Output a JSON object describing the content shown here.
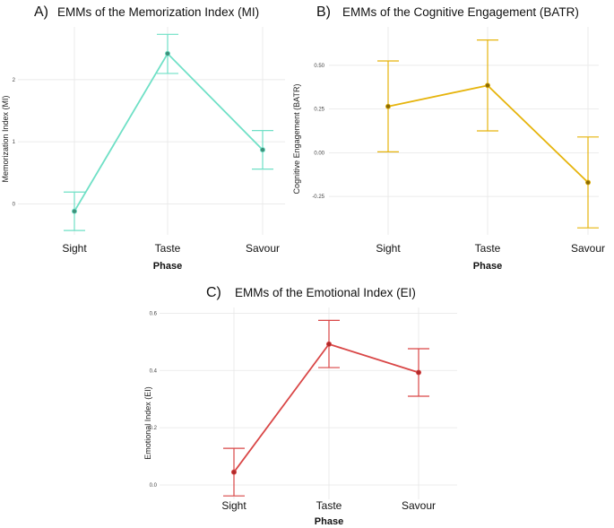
{
  "chart_data": [
    {
      "type": "line",
      "panel": "A)",
      "title": "EMMs of the Memorization Index (MI)",
      "xlabel": "Phase",
      "ylabel": "Memorization Index (MI)",
      "categories": [
        "Sight",
        "Taste",
        "Savour"
      ],
      "values": [
        -0.12,
        2.42,
        0.87
      ],
      "ci_lower": [
        -0.43,
        2.1,
        0.56
      ],
      "ci_upper": [
        0.19,
        2.73,
        1.18
      ],
      "yticks": [
        "0",
        "1",
        "2"
      ],
      "ylim": [
        -0.5,
        2.85
      ],
      "color": "#6fe0c6",
      "point_color": "#3f8f7a",
      "grid": true
    },
    {
      "type": "line",
      "panel": "B)",
      "title": "EMMs of the Cognitive Engagement (BATR)",
      "xlabel": "Phase",
      "ylabel": "Cognitive Engagement (BATR)",
      "categories": [
        "Sight",
        "Taste",
        "Savour"
      ],
      "values": [
        0.265,
        0.385,
        -0.17
      ],
      "ci_lower": [
        0.005,
        0.125,
        -0.43
      ],
      "ci_upper": [
        0.525,
        0.645,
        0.09
      ],
      "yticks": [
        "-0.25",
        "0.00",
        "0.25",
        "0.50"
      ],
      "ylim": [
        -0.47,
        0.72
      ],
      "color": "#e6b40c",
      "point_color": "#8a6a05",
      "grid": true
    },
    {
      "type": "line",
      "panel": "C)",
      "title": "EMMs of the Emotional Index (EI)",
      "xlabel": "Phase",
      "ylabel": "Emotional Index (EI)",
      "categories": [
        "Sight",
        "Taste",
        "Savour"
      ],
      "values": [
        0.045,
        0.492,
        0.393
      ],
      "ci_lower": [
        -0.038,
        0.41,
        0.31
      ],
      "ci_upper": [
        0.128,
        0.575,
        0.476
      ],
      "yticks": [
        "0.0",
        "0.2",
        "0.4",
        "0.6"
      ],
      "ylim": [
        -0.05,
        0.62
      ],
      "color": "#d94646",
      "point_color": "#b02a2a",
      "grid": true
    }
  ]
}
